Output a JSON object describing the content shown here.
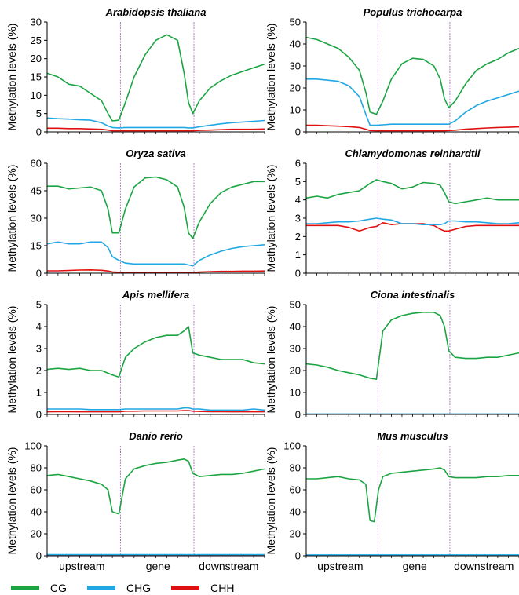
{
  "legend": [
    {
      "name": "CG",
      "color": "#1aa542"
    },
    {
      "name": "CHG",
      "color": "#21a7e4"
    },
    {
      "name": "CHH",
      "color": "#e01010"
    }
  ],
  "x_categories": [
    "upstream",
    "gene",
    "downstream"
  ],
  "ylabel": "Methylation levels (%)",
  "chart_data": [
    {
      "type": "line",
      "title": "Arabidopsis thaliana",
      "ylim": [
        0,
        30
      ],
      "yticks": [
        0,
        5,
        10,
        15,
        20,
        25,
        30
      ],
      "x": [
        0,
        0.05,
        0.1,
        0.15,
        0.2,
        0.25,
        0.28,
        0.3,
        0.33,
        0.36,
        0.4,
        0.45,
        0.5,
        0.55,
        0.6,
        0.63,
        0.65,
        0.67,
        0.7,
        0.75,
        0.8,
        0.85,
        0.9,
        0.95,
        1.0
      ],
      "series": [
        {
          "name": "CG",
          "values": [
            16,
            15,
            13,
            12.5,
            10.5,
            8.5,
            5,
            3,
            3.2,
            8,
            15,
            21,
            25,
            26.5,
            25,
            16,
            8,
            5,
            8.5,
            12,
            14,
            15.5,
            16.5,
            17.5,
            18.5
          ]
        },
        {
          "name": "CHG",
          "values": [
            3.8,
            3.6,
            3.5,
            3.3,
            3.2,
            2.5,
            1.6,
            1.2,
            1.1,
            1.2,
            1.2,
            1.2,
            1.2,
            1.2,
            1.2,
            1.2,
            1.1,
            1.1,
            1.4,
            1.8,
            2.2,
            2.5,
            2.7,
            2.9,
            3.1
          ]
        },
        {
          "name": "CHH",
          "values": [
            1.0,
            1.0,
            0.9,
            0.9,
            0.8,
            0.7,
            0.5,
            0.3,
            0.3,
            0.3,
            0.3,
            0.3,
            0.3,
            0.3,
            0.3,
            0.3,
            0.3,
            0.3,
            0.4,
            0.5,
            0.6,
            0.7,
            0.7,
            0.7,
            0.8
          ]
        }
      ]
    },
    {
      "type": "line",
      "title": "Populus trichocarpa",
      "ylim": [
        0,
        50
      ],
      "yticks": [
        0,
        10,
        20,
        30,
        40,
        50
      ],
      "x": [
        0,
        0.05,
        0.1,
        0.15,
        0.2,
        0.25,
        0.28,
        0.3,
        0.33,
        0.36,
        0.4,
        0.45,
        0.5,
        0.55,
        0.6,
        0.63,
        0.65,
        0.67,
        0.7,
        0.75,
        0.8,
        0.85,
        0.9,
        0.95,
        1.0
      ],
      "series": [
        {
          "name": "CG",
          "values": [
            43,
            42,
            40,
            38,
            34,
            28,
            18,
            9,
            8,
            14,
            24,
            31,
            33.5,
            33,
            30,
            24,
            15,
            11,
            14,
            22,
            28,
            31,
            33,
            36,
            38
          ]
        },
        {
          "name": "CHG",
          "values": [
            24,
            24,
            23.5,
            23,
            21,
            16,
            8,
            3,
            3,
            3.2,
            3.5,
            3.5,
            3.5,
            3.5,
            3.5,
            3.5,
            3.5,
            3.5,
            5,
            9,
            12,
            14,
            15.5,
            17,
            18.5
          ]
        },
        {
          "name": "CHH",
          "values": [
            3,
            3,
            2.8,
            2.6,
            2.4,
            2,
            1.2,
            0.6,
            0.5,
            0.5,
            0.5,
            0.5,
            0.5,
            0.5,
            0.5,
            0.5,
            0.5,
            0.6,
            0.8,
            1.2,
            1.5,
            1.8,
            2,
            2.1,
            2.3
          ]
        }
      ]
    },
    {
      "type": "line",
      "title": "Oryza sativa",
      "ylim": [
        0,
        60
      ],
      "yticks": [
        0,
        15,
        30,
        45,
        60
      ],
      "x": [
        0,
        0.05,
        0.1,
        0.15,
        0.2,
        0.25,
        0.28,
        0.3,
        0.33,
        0.36,
        0.4,
        0.45,
        0.5,
        0.55,
        0.6,
        0.63,
        0.65,
        0.67,
        0.7,
        0.75,
        0.8,
        0.85,
        0.9,
        0.95,
        1.0
      ],
      "series": [
        {
          "name": "CG",
          "values": [
            47.5,
            47.5,
            46,
            46.5,
            47,
            45,
            35,
            22,
            22,
            35,
            47,
            52,
            52.5,
            51,
            47,
            36,
            22,
            19,
            28,
            38,
            44,
            47,
            48.5,
            50,
            50
          ]
        },
        {
          "name": "CHG",
          "values": [
            16,
            17,
            16,
            16,
            17,
            17,
            14,
            9,
            7,
            5.5,
            5,
            5,
            5,
            5,
            5,
            5,
            4.5,
            4,
            7,
            10,
            12,
            13.5,
            14.5,
            15,
            15.5
          ]
        },
        {
          "name": "CHH",
          "values": [
            1.3,
            1.3,
            1.5,
            1.7,
            1.8,
            1.6,
            1.2,
            0.7,
            0.5,
            0.4,
            0.4,
            0.4,
            0.4,
            0.4,
            0.4,
            0.4,
            0.4,
            0.4,
            0.6,
            0.8,
            1,
            1,
            1.1,
            1.1,
            1.2
          ]
        }
      ]
    },
    {
      "type": "line",
      "title": "Chlamydomonas reinhardtii",
      "ylim": [
        0,
        6
      ],
      "yticks": [
        0,
        1,
        2,
        3,
        4,
        5,
        6
      ],
      "x": [
        0,
        0.05,
        0.1,
        0.15,
        0.2,
        0.25,
        0.3,
        0.33,
        0.36,
        0.4,
        0.45,
        0.5,
        0.55,
        0.6,
        0.63,
        0.65,
        0.67,
        0.7,
        0.75,
        0.8,
        0.85,
        0.9,
        0.95,
        1.0
      ],
      "series": [
        {
          "name": "CG",
          "values": [
            4.1,
            4.2,
            4.1,
            4.3,
            4.4,
            4.5,
            4.9,
            5.1,
            5.0,
            4.9,
            4.6,
            4.7,
            4.95,
            4.9,
            4.8,
            4.4,
            3.9,
            3.8,
            3.9,
            4.0,
            4.1,
            4.0,
            4.0,
            4.0
          ]
        },
        {
          "name": "CHG",
          "values": [
            2.7,
            2.7,
            2.75,
            2.8,
            2.8,
            2.85,
            2.95,
            3.0,
            2.95,
            2.9,
            2.7,
            2.7,
            2.65,
            2.65,
            2.65,
            2.7,
            2.85,
            2.85,
            2.8,
            2.8,
            2.75,
            2.7,
            2.7,
            2.75
          ]
        },
        {
          "name": "CHH",
          "values": [
            2.6,
            2.6,
            2.6,
            2.6,
            2.5,
            2.3,
            2.5,
            2.55,
            2.75,
            2.65,
            2.7,
            2.7,
            2.7,
            2.6,
            2.4,
            2.3,
            2.3,
            2.4,
            2.55,
            2.6,
            2.6,
            2.6,
            2.6,
            2.6
          ]
        }
      ]
    },
    {
      "type": "line",
      "title": "Apis mellifera",
      "ylim": [
        0,
        5
      ],
      "yticks": [
        0,
        1,
        2,
        3,
        4,
        5
      ],
      "x": [
        0,
        0.05,
        0.1,
        0.15,
        0.2,
        0.25,
        0.3,
        0.33,
        0.36,
        0.4,
        0.45,
        0.5,
        0.55,
        0.6,
        0.63,
        0.65,
        0.67,
        0.7,
        0.75,
        0.8,
        0.85,
        0.9,
        0.95,
        1.0
      ],
      "series": [
        {
          "name": "CG",
          "values": [
            2.05,
            2.1,
            2.05,
            2.1,
            2.0,
            2.0,
            1.8,
            1.7,
            2.6,
            3.0,
            3.3,
            3.5,
            3.6,
            3.6,
            3.8,
            4.0,
            2.8,
            2.7,
            2.6,
            2.5,
            2.5,
            2.5,
            2.35,
            2.3
          ]
        },
        {
          "name": "CHG",
          "values": [
            0.25,
            0.25,
            0.25,
            0.25,
            0.22,
            0.22,
            0.22,
            0.22,
            0.25,
            0.25,
            0.25,
            0.25,
            0.25,
            0.25,
            0.3,
            0.3,
            0.25,
            0.25,
            0.2,
            0.2,
            0.2,
            0.2,
            0.25,
            0.2
          ]
        },
        {
          "name": "CHH",
          "values": [
            0.12,
            0.13,
            0.13,
            0.12,
            0.12,
            0.12,
            0.12,
            0.12,
            0.15,
            0.15,
            0.16,
            0.16,
            0.16,
            0.16,
            0.18,
            0.18,
            0.15,
            0.14,
            0.13,
            0.13,
            0.12,
            0.12,
            0.12,
            0.12
          ]
        }
      ]
    },
    {
      "type": "line",
      "title": "Ciona intestinalis",
      "ylim": [
        0,
        50
      ],
      "yticks": [
        0,
        10,
        20,
        30,
        40,
        50
      ],
      "x": [
        0,
        0.05,
        0.1,
        0.15,
        0.2,
        0.25,
        0.3,
        0.33,
        0.36,
        0.4,
        0.45,
        0.5,
        0.55,
        0.6,
        0.63,
        0.65,
        0.67,
        0.7,
        0.75,
        0.8,
        0.85,
        0.9,
        0.95,
        1.0
      ],
      "series": [
        {
          "name": "CG",
          "values": [
            23,
            22.5,
            21.5,
            20,
            19,
            18,
            16.5,
            16,
            38,
            43,
            45,
            46,
            46.5,
            46.5,
            45,
            40,
            29,
            26,
            25.5,
            25.5,
            26,
            26,
            27,
            28
          ]
        },
        {
          "name": "CHG",
          "values": [
            0.2,
            0.2,
            0.2,
            0.2,
            0.2,
            0.2,
            0.2,
            0.2,
            0.2,
            0.2,
            0.2,
            0.2,
            0.2,
            0.2,
            0.2,
            0.2,
            0.2,
            0.2,
            0.2,
            0.2,
            0.2,
            0.2,
            0.2,
            0.2
          ]
        },
        {
          "name": "CHH",
          "values": [
            0.1,
            0.1,
            0.1,
            0.1,
            0.1,
            0.1,
            0.1,
            0.1,
            0.1,
            0.1,
            0.1,
            0.1,
            0.1,
            0.1,
            0.1,
            0.1,
            0.1,
            0.1,
            0.1,
            0.1,
            0.1,
            0.1,
            0.1,
            0.1
          ]
        }
      ]
    },
    {
      "type": "line",
      "title": "Danio rerio",
      "ylim": [
        0,
        100
      ],
      "yticks": [
        0,
        20,
        40,
        60,
        80,
        100
      ],
      "x": [
        0,
        0.05,
        0.1,
        0.15,
        0.2,
        0.25,
        0.28,
        0.3,
        0.33,
        0.36,
        0.4,
        0.45,
        0.5,
        0.55,
        0.6,
        0.63,
        0.65,
        0.67,
        0.7,
        0.75,
        0.8,
        0.85,
        0.9,
        0.95,
        1.0
      ],
      "series": [
        {
          "name": "CG",
          "values": [
            73,
            74,
            72,
            70,
            68,
            65,
            60,
            40,
            38,
            70,
            79,
            82,
            84,
            85,
            87,
            88,
            86,
            75,
            72,
            73,
            74,
            74,
            75,
            77,
            79
          ]
        },
        {
          "name": "CHG",
          "values": [
            1,
            1,
            1,
            1,
            1,
            1,
            1,
            1,
            1,
            1,
            1,
            1,
            1,
            1,
            1,
            1,
            1,
            1,
            1,
            1,
            1,
            1,
            1,
            1,
            1
          ]
        },
        {
          "name": "CHH",
          "values": [
            0.6,
            0.6,
            0.6,
            0.6,
            0.6,
            0.6,
            0.6,
            0.6,
            0.6,
            0.6,
            0.6,
            0.6,
            0.6,
            0.6,
            0.6,
            0.6,
            0.6,
            0.6,
            0.6,
            0.6,
            0.6,
            0.6,
            0.6,
            0.6,
            0.6
          ]
        }
      ]
    },
    {
      "type": "line",
      "title": "Mus musculus",
      "ylim": [
        0,
        100
      ],
      "yticks": [
        0,
        20,
        40,
        60,
        80,
        100
      ],
      "x": [
        0,
        0.05,
        0.1,
        0.15,
        0.2,
        0.25,
        0.28,
        0.3,
        0.32,
        0.34,
        0.36,
        0.4,
        0.45,
        0.5,
        0.55,
        0.6,
        0.63,
        0.65,
        0.67,
        0.7,
        0.75,
        0.8,
        0.85,
        0.9,
        0.95,
        1.0
      ],
      "series": [
        {
          "name": "CG",
          "values": [
            70,
            70,
            71,
            72,
            70,
            69,
            65,
            32,
            31,
            60,
            72,
            75,
            76,
            77,
            78,
            79,
            80,
            78,
            72,
            71,
            71,
            71,
            72,
            72,
            73,
            73
          ]
        },
        {
          "name": "CHG",
          "values": [
            0.8,
            0.8,
            0.8,
            0.8,
            0.8,
            0.8,
            0.8,
            0.8,
            0.8,
            0.8,
            0.8,
            0.8,
            0.8,
            0.8,
            0.8,
            0.8,
            0.8,
            0.8,
            0.8,
            0.8,
            0.8,
            0.8,
            0.8,
            0.8,
            0.8,
            0.8
          ]
        },
        {
          "name": "CHH",
          "values": [
            0.4,
            0.4,
            0.4,
            0.4,
            0.4,
            0.4,
            0.4,
            0.4,
            0.4,
            0.4,
            0.4,
            0.4,
            0.4,
            0.4,
            0.4,
            0.4,
            0.4,
            0.4,
            0.4,
            0.4,
            0.4,
            0.4,
            0.4,
            0.4,
            0.4,
            0.4
          ]
        }
      ]
    }
  ]
}
